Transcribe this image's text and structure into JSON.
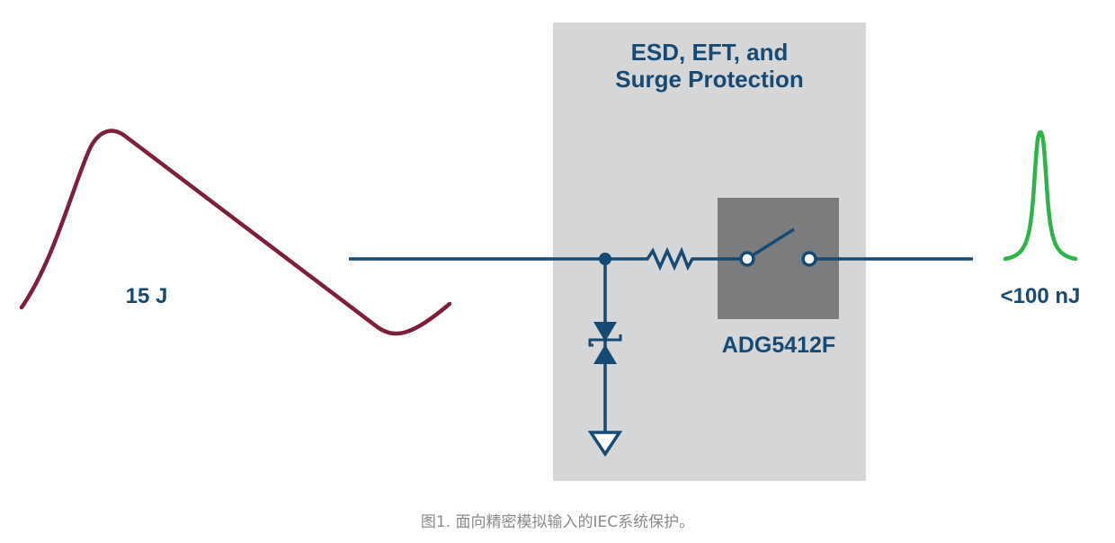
{
  "diagram": {
    "title_line1": "ESD, EFT, and",
    "title_line2": "Surge Protection",
    "input_energy": "15 J",
    "output_energy": "<100 nJ",
    "device_label": "ADG5412F",
    "caption": "图1. 面向精密模拟输入的IEC系统保护。",
    "colors": {
      "wire": "#174a73",
      "input_waveform": "#7d1f38",
      "output_waveform": "#2eb34a",
      "protection_box": "#d5d6d8",
      "device_box": "#7b7c7e"
    }
  }
}
